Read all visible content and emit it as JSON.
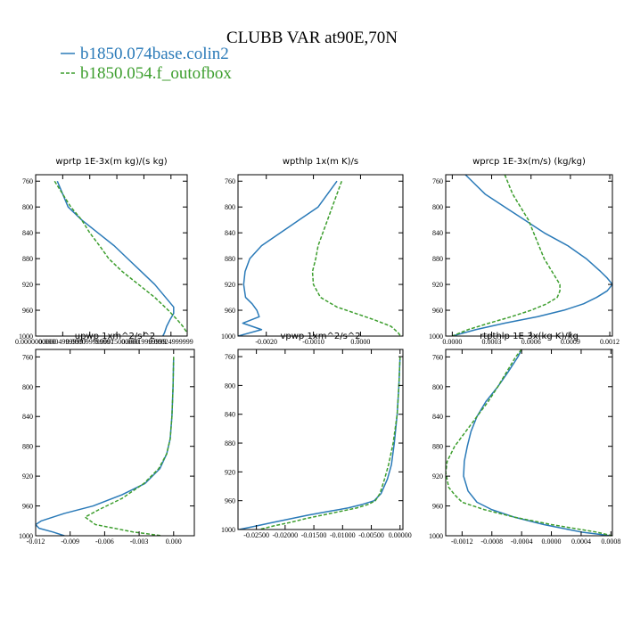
{
  "figure": {
    "title": "CLUBB VAR at90E,70N",
    "legend": [
      {
        "label": "b1850.074base.colin2",
        "color": "#2a7ab8",
        "dash": "solid"
      },
      {
        "label": "b1850.054.f_outofbox",
        "color": "#3d9e2e",
        "dash": "dashed"
      }
    ]
  },
  "chart_data": [
    {
      "type": "line",
      "title": "wprtp  1E-3x(m kg)/(s kg)",
      "ylim": [
        1000,
        750
      ],
      "yticks": [
        760,
        800,
        840,
        880,
        920,
        960,
        1000
      ],
      "xlim": [
        0.0,
        0.00028
      ],
      "xticks": [
        0.0,
        5e-05,
        0.0001,
        0.00015,
        0.0002,
        0.00025
      ],
      "xtick_labels": [
        "0.0000000000",
        "0.000049999997",
        "0.000099999997",
        "0.00015000000",
        "0.00019999999",
        "0.00024999999"
      ],
      "series": [
        {
          "y": [
            760,
            780,
            800,
            820,
            840,
            860,
            880,
            900,
            920,
            940,
            955,
            965,
            975,
            985,
            995,
            1000
          ],
          "x": [
            4e-05,
            5e-05,
            6e-05,
            8.5e-05,
            0.000115,
            0.000145,
            0.00017,
            0.000195,
            0.00022,
            0.00024,
            0.000255,
            0.000255,
            0.000248,
            0.000242,
            0.000238,
            0.000235
          ]
        },
        {
          "y": [
            760,
            780,
            800,
            820,
            840,
            860,
            880,
            900,
            920,
            940,
            960,
            975,
            985,
            995,
            1000
          ],
          "x": [
            3.5e-05,
            5e-05,
            6.5e-05,
            8.5e-05,
            0.0001,
            0.000118,
            0.000135,
            0.00016,
            0.00019,
            0.00022,
            0.000245,
            0.000262,
            0.000272,
            0.00028,
            0.000282
          ]
        }
      ]
    },
    {
      "type": "line",
      "title": "wpthlp  1x(m K)/s",
      "ylim": [
        1000,
        750
      ],
      "yticks": [
        760,
        800,
        840,
        880,
        920,
        960,
        1000
      ],
      "xlim": [
        -0.0026,
        0.0009
      ],
      "xticks": [
        -0.002,
        -0.001,
        0.0
      ],
      "xtick_labels": [
        "-0.0020",
        "-0.0010",
        "0.0000"
      ],
      "series": [
        {
          "y": [
            760,
            780,
            800,
            820,
            840,
            860,
            880,
            900,
            920,
            940,
            950,
            960,
            970,
            980,
            990,
            1000
          ],
          "x": [
            -0.0005,
            -0.0007,
            -0.0009,
            -0.0013,
            -0.0017,
            -0.0021,
            -0.00235,
            -0.00245,
            -0.00248,
            -0.00244,
            -0.0023,
            -0.0022,
            -0.00215,
            -0.0025,
            -0.0021,
            -0.0026
          ]
        },
        {
          "y": [
            760,
            780,
            800,
            820,
            840,
            860,
            880,
            900,
            920,
            940,
            955,
            965,
            975,
            985,
            995,
            1000
          ],
          "x": [
            -0.0004,
            -0.0005,
            -0.0006,
            -0.0007,
            -0.0008,
            -0.0009,
            -0.00095,
            -0.00102,
            -0.001,
            -0.00085,
            -0.0005,
            -0.0001,
            0.0003,
            0.00065,
            0.0008,
            0.00085
          ]
        }
      ]
    },
    {
      "type": "line",
      "title": "wprcp  1E-3x(m/s) (kg/kg)",
      "ylim": [
        1000,
        750
      ],
      "yticks": [
        760,
        800,
        840,
        880,
        920,
        960,
        1000
      ],
      "xlim": [
        -5e-05,
        0.00122
      ],
      "xticks": [
        0.0,
        0.0003,
        0.0006,
        0.0009,
        0.0012
      ],
      "xtick_labels": [
        "0.0000",
        "0.0003",
        "0.0006",
        "0.0009",
        "0.0012"
      ],
      "series": [
        {
          "y": [
            750,
            760,
            780,
            800,
            820,
            840,
            860,
            880,
            900,
            910,
            920,
            930,
            940,
            950,
            960,
            970,
            980,
            990,
            1000
          ],
          "x": [
            0.0001,
            0.00015,
            0.00025,
            0.0004,
            0.00055,
            0.0007,
            0.00088,
            0.00102,
            0.00113,
            0.00118,
            0.00122,
            0.00118,
            0.0011,
            0.001,
            0.00085,
            0.00065,
            0.0004,
            0.00018,
            0.0
          ]
        },
        {
          "y": [
            750,
            760,
            780,
            800,
            820,
            840,
            860,
            880,
            900,
            920,
            930,
            940,
            950,
            960,
            970,
            980,
            990,
            1000
          ],
          "x": [
            0.0004,
            0.00042,
            0.00046,
            0.00052,
            0.00058,
            0.00062,
            0.00066,
            0.0007,
            0.00076,
            0.00082,
            0.00082,
            0.0008,
            0.00072,
            0.0006,
            0.00045,
            0.00028,
            0.00012,
            0.0
          ]
        }
      ]
    },
    {
      "type": "line",
      "title": "upwp  1xm^2/s^2",
      "ylim": [
        1000,
        750
      ],
      "yticks": [
        760,
        800,
        840,
        880,
        920,
        960,
        1000
      ],
      "xlim": [
        -0.012,
        0.0018
      ],
      "xticks": [
        -0.012,
        -0.009,
        -0.006,
        -0.003,
        0.0
      ],
      "xtick_labels": [
        "-0.012",
        "-0.009",
        "-0.006",
        "-0.003",
        "0.000"
      ],
      "series": [
        {
          "y": [
            760,
            800,
            840,
            870,
            890,
            910,
            930,
            945,
            960,
            970,
            980,
            985,
            990,
            995,
            1000
          ],
          "x": [
            0.0,
            -5e-05,
            -0.00015,
            -0.0003,
            -0.0006,
            -0.0012,
            -0.0025,
            -0.0045,
            -0.007,
            -0.0095,
            -0.0115,
            -0.012,
            -0.0117,
            -0.0105,
            -0.0095
          ]
        },
        {
          "y": [
            760,
            800,
            840,
            870,
            890,
            910,
            930,
            950,
            965,
            975,
            985,
            995,
            1000
          ],
          "x": [
            0.0,
            -5e-05,
            -0.00015,
            -0.0003,
            -0.0006,
            -0.0013,
            -0.0026,
            -0.0045,
            -0.0065,
            -0.0077,
            -0.0068,
            -0.0035,
            -0.001
          ]
        }
      ]
    },
    {
      "type": "line",
      "title": "vpwp  1xm^2/s^2",
      "ylim": [
        1000,
        750
      ],
      "yticks": [
        760,
        800,
        840,
        880,
        920,
        960,
        1000
      ],
      "xlim": [
        -0.0282,
        0.0005
      ],
      "xticks": [
        -0.025,
        -0.02,
        -0.015,
        -0.01,
        -0.005,
        0.0
      ],
      "xtick_labels": [
        "-0.02500",
        "-0.02000",
        "-0.01500",
        "-0.01000",
        "-0.00500",
        "0.00000"
      ],
      "series": [
        {
          "y": [
            760,
            800,
            840,
            880,
            910,
            930,
            950,
            960,
            965,
            970,
            975,
            980,
            985,
            990,
            995,
            1000
          ],
          "x": [
            0.0,
            -0.0002,
            -0.0005,
            -0.001,
            -0.0015,
            -0.0022,
            -0.0033,
            -0.0045,
            -0.0065,
            -0.009,
            -0.0125,
            -0.016,
            -0.019,
            -0.022,
            -0.025,
            -0.028
          ]
        },
        {
          "y": [
            760,
            800,
            840,
            880,
            910,
            930,
            950,
            960,
            965,
            970,
            975,
            980,
            985,
            990,
            995,
            1000
          ],
          "x": [
            0.0,
            -0.0002,
            -0.0005,
            -0.0012,
            -0.002,
            -0.0027,
            -0.0035,
            -0.0043,
            -0.0055,
            -0.0075,
            -0.0105,
            -0.0135,
            -0.0165,
            -0.019,
            -0.022,
            -0.0245
          ]
        }
      ]
    },
    {
      "type": "line",
      "title": "rtpthlp  1E-3x(kg K)/kg",
      "ylim": [
        1000,
        750
      ],
      "yticks": [
        760,
        800,
        840,
        880,
        920,
        960,
        1000
      ],
      "xlim": [
        -0.00142,
        0.00082
      ],
      "xticks": [
        -0.0012,
        -0.0008,
        -0.0004,
        0.0,
        0.0004,
        0.0008
      ],
      "xtick_labels": [
        "-0.0012",
        "-0.0008",
        "-0.0004",
        "0.0000",
        "0.0004",
        "0.0008"
      ],
      "series": [
        {
          "y": [
            750,
            760,
            780,
            800,
            820,
            840,
            860,
            880,
            900,
            920,
            940,
            955,
            965,
            975,
            985,
            995,
            1000
          ],
          "x": [
            -0.0004,
            -0.00045,
            -0.00058,
            -0.00072,
            -0.00088,
            -0.001,
            -0.00108,
            -0.00113,
            -0.00117,
            -0.00118,
            -0.00112,
            -0.001,
            -0.0008,
            -0.0005,
            -0.0001,
            0.0004,
            0.0008
          ]
        },
        {
          "y": [
            750,
            760,
            780,
            800,
            820,
            840,
            860,
            880,
            900,
            915,
            925,
            935,
            945,
            955,
            965,
            975,
            985,
            995,
            1000
          ],
          "x": [
            -0.0004,
            -0.00048,
            -0.0006,
            -0.00072,
            -0.00085,
            -0.001,
            -0.00115,
            -0.0013,
            -0.0014,
            -0.00142,
            -0.0014,
            -0.00138,
            -0.0013,
            -0.0012,
            -0.0009,
            -0.0005,
            0.0,
            0.0006,
            0.00082
          ]
        }
      ]
    }
  ]
}
